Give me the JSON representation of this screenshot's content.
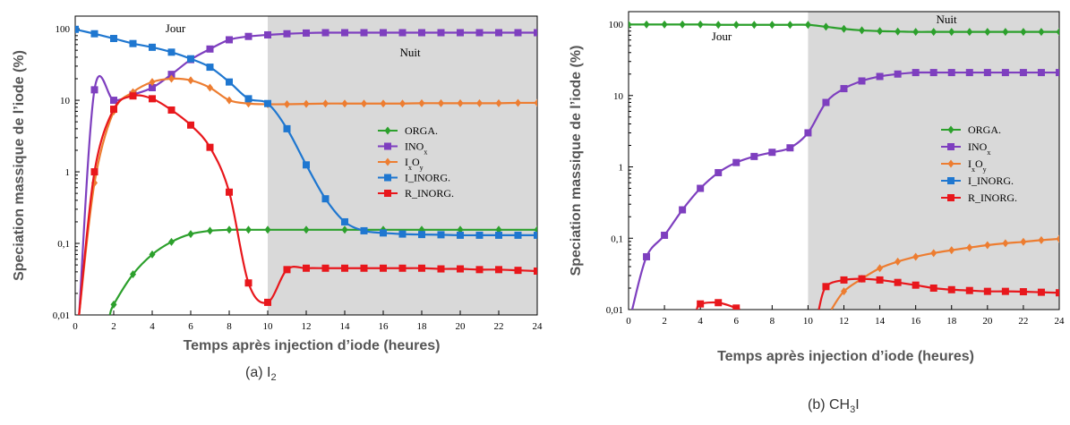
{
  "chart_data": [
    {
      "type": "line",
      "caption": "(a) I",
      "caption_sub": "2",
      "xlabel": "Temps après injection d’iode (heures)",
      "ylabel": "Speciation massique de l’iode (%)",
      "xlim": [
        0,
        24
      ],
      "ylim": [
        0.01,
        150
      ],
      "yscale": "log",
      "xticks": [
        0,
        2,
        4,
        6,
        8,
        10,
        12,
        14,
        16,
        18,
        20,
        22,
        24
      ],
      "yticks": [
        {
          "v": 0.01,
          "label": "0,01"
        },
        {
          "v": 0.1,
          "label": "0,1"
        },
        {
          "v": 1,
          "label": "1"
        },
        {
          "v": 10,
          "label": "10"
        },
        {
          "v": 100,
          "label": "100"
        }
      ],
      "night_start": 10,
      "day_label": "Jour",
      "night_label": "Nuit",
      "legend_position": "right",
      "series": [
        {
          "name": "ORGA.",
          "sub": "",
          "color": "#2ca02c",
          "marker": "diamond",
          "x": [
            1.8,
            2,
            3,
            4,
            5,
            6,
            7,
            8,
            9,
            10,
            12,
            14,
            16,
            18,
            20,
            22,
            24
          ],
          "y": [
            0.01,
            0.014,
            0.037,
            0.07,
            0.105,
            0.135,
            0.15,
            0.155,
            0.155,
            0.155,
            0.155,
            0.155,
            0.155,
            0.155,
            0.155,
            0.155,
            0.155
          ]
        },
        {
          "name": "INO",
          "sub": "x",
          "color": "#7e3fbf",
          "marker": "square",
          "x": [
            0.2,
            1,
            2,
            3,
            4,
            5,
            6,
            7,
            8,
            9,
            10,
            11,
            12,
            13,
            14,
            15,
            16,
            17,
            18,
            19,
            20,
            21,
            22,
            23,
            24
          ],
          "y": [
            0.01,
            14,
            10,
            12,
            15,
            23,
            37,
            52,
            70,
            78,
            82,
            85,
            87,
            88,
            88,
            88,
            88,
            88,
            88,
            88,
            88,
            88,
            88,
            88,
            88
          ]
        },
        {
          "name": "I",
          "sub": "x",
          "name2": "O",
          "sub2": "y",
          "color": "#ed7d31",
          "marker": "diamond",
          "x": [
            0.2,
            1,
            2,
            3,
            4,
            5,
            6,
            7,
            8,
            9,
            10,
            11,
            12,
            13,
            14,
            15,
            16,
            17,
            18,
            19,
            20,
            21,
            22,
            23,
            24
          ],
          "y": [
            0.01,
            0.7,
            7,
            13,
            18,
            20,
            19,
            15,
            10,
            9,
            8.8,
            8.8,
            8.9,
            9,
            9,
            9,
            9,
            9,
            9.1,
            9.1,
            9.1,
            9.1,
            9.1,
            9.2,
            9.2
          ]
        },
        {
          "name": "I_INORG.",
          "sub": "",
          "color": "#1f77d0",
          "marker": "square",
          "x": [
            0,
            1,
            2,
            3,
            4,
            5,
            6,
            7,
            8,
            9,
            10,
            11,
            12,
            13,
            14,
            15,
            16,
            17,
            18,
            19,
            20,
            21,
            22,
            23,
            24
          ],
          "y": [
            98,
            85,
            73,
            62,
            55,
            47,
            38,
            29,
            18,
            10.5,
            9,
            4,
            1.25,
            0.42,
            0.2,
            0.15,
            0.14,
            0.135,
            0.133,
            0.132,
            0.13,
            0.13,
            0.13,
            0.13,
            0.13
          ]
        },
        {
          "name": "R_INORG.",
          "sub": "",
          "color": "#e8171c",
          "marker": "square",
          "x": [
            0.2,
            1,
            2,
            3,
            4,
            5,
            6,
            7,
            8,
            9,
            10,
            11,
            12,
            13,
            14,
            15,
            16,
            17,
            18,
            19,
            20,
            21,
            22,
            23,
            24
          ],
          "y": [
            0.01,
            1,
            7.5,
            11.5,
            10.5,
            7.3,
            4.5,
            2.2,
            0.52,
            0.028,
            0.015,
            0.043,
            0.045,
            0.045,
            0.045,
            0.045,
            0.045,
            0.045,
            0.045,
            0.044,
            0.044,
            0.043,
            0.043,
            0.042,
            0.041
          ]
        }
      ]
    },
    {
      "type": "line",
      "caption": "(b) CH",
      "caption_sub": "3",
      "caption_tail": "I",
      "xlabel": "Temps après injection d’iode (heures)",
      "ylabel": "Speciation massique de l’iode (%)",
      "xlim": [
        0,
        24
      ],
      "ylim": [
        0.01,
        150
      ],
      "yscale": "log",
      "xticks": [
        0,
        2,
        4,
        6,
        8,
        10,
        12,
        14,
        16,
        18,
        20,
        22,
        24
      ],
      "yticks": [
        {
          "v": 0.01,
          "label": "0,01"
        },
        {
          "v": 0.1,
          "label": "0,1"
        },
        {
          "v": 1,
          "label": "1"
        },
        {
          "v": 10,
          "label": "10"
        },
        {
          "v": 100,
          "label": "100"
        }
      ],
      "night_start": 10,
      "day_label": "Jour",
      "night_label": "Nuit",
      "legend_position": "right",
      "series": [
        {
          "name": "ORGA.",
          "sub": "",
          "color": "#2ca02c",
          "marker": "diamond",
          "x": [
            0,
            1,
            2,
            3,
            4,
            5,
            6,
            7,
            8,
            9,
            10,
            11,
            12,
            13,
            14,
            15,
            16,
            17,
            18,
            19,
            20,
            21,
            22,
            23,
            24
          ],
          "y": [
            99,
            99,
            99,
            99,
            99,
            98,
            98,
            98,
            98,
            98,
            98,
            92,
            86,
            82,
            80,
            79,
            78,
            78,
            78,
            78,
            78,
            78,
            78,
            78,
            78
          ]
        },
        {
          "name": "INO",
          "sub": "x",
          "color": "#7e3fbf",
          "marker": "square",
          "x": [
            0.2,
            1,
            2,
            3,
            4,
            5,
            6,
            7,
            8,
            9,
            10,
            11,
            12,
            13,
            14,
            15,
            16,
            17,
            18,
            19,
            20,
            21,
            22,
            23,
            24
          ],
          "y": [
            0.01,
            0.055,
            0.11,
            0.25,
            0.5,
            0.83,
            1.15,
            1.4,
            1.6,
            1.85,
            3,
            8,
            12.5,
            16,
            18.5,
            20,
            21,
            21,
            21,
            21,
            21,
            21,
            21,
            21,
            21
          ]
        },
        {
          "name": "I",
          "sub": "x",
          "name2": "O",
          "sub2": "y",
          "color": "#ed7d31",
          "marker": "diamond",
          "x": [
            11.3,
            12,
            13,
            14,
            15,
            16,
            17,
            18,
            19,
            20,
            21,
            22,
            23,
            24
          ],
          "y": [
            0.01,
            0.018,
            0.027,
            0.038,
            0.047,
            0.055,
            0.062,
            0.068,
            0.074,
            0.08,
            0.085,
            0.089,
            0.094,
            0.098
          ]
        },
        {
          "name": "I_INORG.",
          "sub": "",
          "color": "#1f77d0",
          "marker": "square",
          "x": [],
          "y": []
        },
        {
          "name": "R_INORG.",
          "sub": "",
          "color": "#e8171c",
          "marker": "square",
          "x": [
            3.8,
            4,
            5,
            6,
            6.2
          ],
          "y": [
            0.01,
            0.012,
            0.0125,
            0.0105,
            0.01
          ],
          "x2": [
            10.6,
            11,
            12,
            13,
            14,
            15,
            16,
            17,
            18,
            19,
            20,
            21,
            22,
            23,
            24
          ],
          "y2": [
            0.01,
            0.021,
            0.026,
            0.027,
            0.026,
            0.024,
            0.022,
            0.02,
            0.019,
            0.0185,
            0.018,
            0.018,
            0.0178,
            0.0175,
            0.0172
          ]
        }
      ]
    }
  ]
}
